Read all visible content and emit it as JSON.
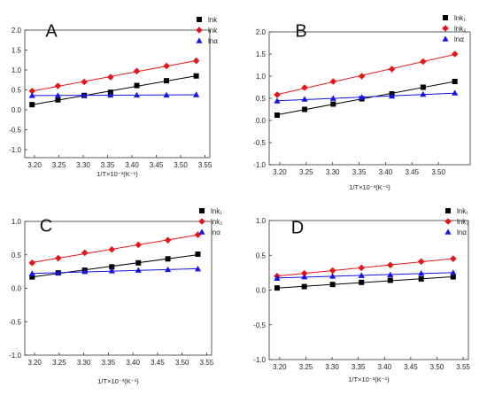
{
  "colors": {
    "series1": "#000000",
    "series2": "#e8141a",
    "series3": "#1414e6",
    "axis": "#333333"
  },
  "chart_data": [
    {
      "type": "scatter",
      "panel_label": "A",
      "xlabel": "1/T×10⁻³(K⁻¹)",
      "ylabel": "",
      "xlim": [
        3.18,
        3.56
      ],
      "ylim": [
        -1.2,
        2.0
      ],
      "xticks": [
        "3.20",
        "3.25",
        "3.30",
        "3.35",
        "3.40",
        "3.45",
        "3.50",
        "3.55"
      ],
      "yticks": [
        "-1.0",
        "-0.5",
        "0.0",
        "0.5",
        "1.0",
        "1.5",
        "2.0"
      ],
      "legend_position": "top-right",
      "x": [
        3.195,
        3.248,
        3.302,
        3.356,
        3.41,
        3.471,
        3.532
      ],
      "series": [
        {
          "name": "lnk",
          "marker": "square",
          "values": [
            0.13,
            0.25,
            0.36,
            0.44,
            0.61,
            0.73,
            0.85
          ]
        },
        {
          "name": "lnk",
          "marker": "diamond",
          "values": [
            0.47,
            0.6,
            0.7,
            0.82,
            0.97,
            1.1,
            1.23
          ]
        },
        {
          "name": "lnα",
          "marker": "triangle",
          "values": [
            0.36,
            0.36,
            0.36,
            0.37,
            0.37,
            0.37,
            0.38
          ]
        }
      ]
    },
    {
      "type": "scatter",
      "panel_label": "B",
      "xlabel": "1/T×10⁻³(K⁻¹)",
      "ylabel": "",
      "xlim": [
        3.18,
        3.56
      ],
      "ylim": [
        -1.0,
        2.0
      ],
      "xticks": [
        "3.20",
        "3.25",
        "3.30",
        "3.35",
        "3.40",
        "3.45",
        "3.50"
      ],
      "yticks": [
        "-1.0",
        "-0.5",
        "0.0",
        "0.5",
        "1.0",
        "1.5",
        "2.0"
      ],
      "legend_position": "top-right",
      "x": [
        3.195,
        3.247,
        3.301,
        3.355,
        3.412,
        3.471,
        3.531
      ],
      "series": [
        {
          "name": "lnk₁",
          "marker": "square",
          "values": [
            0.12,
            0.25,
            0.37,
            0.49,
            0.6,
            0.75,
            0.88
          ]
        },
        {
          "name": "lnk₂",
          "marker": "diamond",
          "values": [
            0.58,
            0.74,
            0.88,
            1.0,
            1.16,
            1.33,
            1.5
          ]
        },
        {
          "name": "lnα",
          "marker": "triangle",
          "values": [
            0.44,
            0.48,
            0.5,
            0.52,
            0.55,
            0.59,
            0.62
          ]
        }
      ]
    },
    {
      "type": "scatter",
      "panel_label": "C",
      "xlabel": "1/T×10⁻³(K⁻¹)",
      "ylabel": "",
      "xlim": [
        3.18,
        3.56
      ],
      "ylim": [
        -1.0,
        1.0
      ],
      "xticks": [
        "3.20",
        "3.25",
        "3.30",
        "3.35",
        "3.40",
        "3.45",
        "3.50",
        "3.55"
      ],
      "yticks": [
        "-1.0",
        "-0.5",
        "0.0",
        "0.5",
        "1.0"
      ],
      "legend_position": "top-right",
      "x": [
        3.195,
        3.248,
        3.302,
        3.357,
        3.411,
        3.471,
        3.532
      ],
      "series": [
        {
          "name": "lnk₁",
          "marker": "square",
          "values": [
            0.17,
            0.23,
            0.27,
            0.32,
            0.38,
            0.44,
            0.51
          ]
        },
        {
          "name": "lnk₂",
          "marker": "diamond",
          "values": [
            0.38,
            0.45,
            0.53,
            0.58,
            0.65,
            0.72,
            0.8
          ]
        },
        {
          "name": "lnα",
          "marker": "triangle",
          "values": [
            0.22,
            0.23,
            0.25,
            0.26,
            0.27,
            0.28,
            0.29
          ]
        }
      ]
    },
    {
      "type": "scatter",
      "panel_label": "D",
      "xlabel": "1/T×10⁻³(K⁻¹)",
      "ylabel": "",
      "xlim": [
        3.18,
        3.56
      ],
      "ylim": [
        -1.0,
        1.0
      ],
      "xticks": [
        "3.20",
        "3.25",
        "3.30",
        "3.35",
        "3.40",
        "3.45",
        "3.50",
        "3.55"
      ],
      "yticks": [
        "-1.0",
        "-0.5",
        "0.0",
        "0.5",
        "1.0"
      ],
      "legend_position": "top-right",
      "x": [
        3.195,
        3.247,
        3.301,
        3.356,
        3.411,
        3.47,
        3.531
      ],
      "series": [
        {
          "name": "lnk₁",
          "marker": "square",
          "values": [
            0.03,
            0.05,
            0.08,
            0.11,
            0.14,
            0.16,
            0.19
          ]
        },
        {
          "name": "lnk₂",
          "marker": "diamond",
          "values": [
            0.2,
            0.24,
            0.28,
            0.32,
            0.36,
            0.41,
            0.45
          ]
        },
        {
          "name": "lnα",
          "marker": "triangle",
          "values": [
            0.17,
            0.19,
            0.2,
            0.21,
            0.22,
            0.24,
            0.25
          ]
        }
      ]
    }
  ]
}
